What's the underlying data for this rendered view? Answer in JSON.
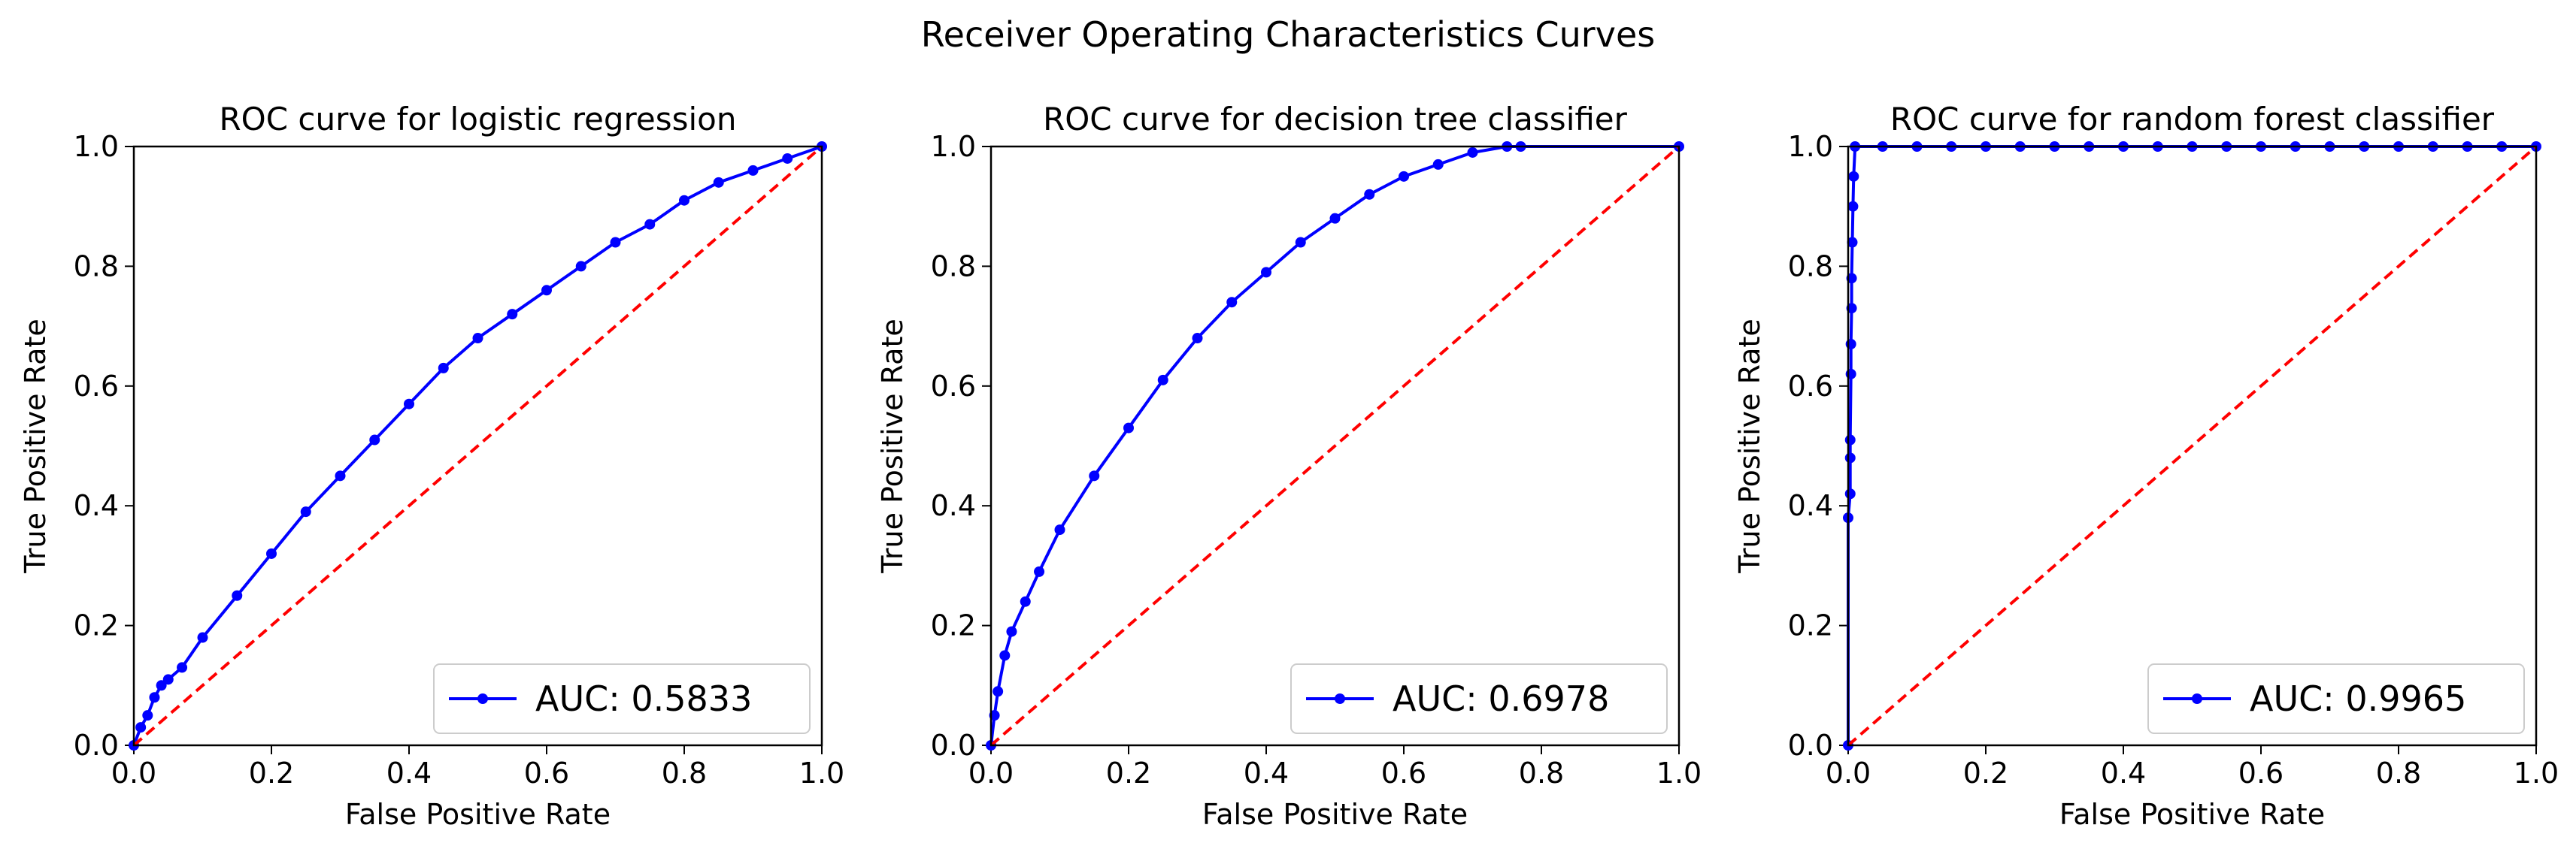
{
  "figure": {
    "suptitle": "Receiver Operating Characteristics Curves"
  },
  "colors": {
    "curve": "#0000ff",
    "diagonal": "#ff0000",
    "axes": "#000000",
    "legend_border": "#cccccc"
  },
  "chart_data": [
    {
      "type": "line",
      "title": "ROC curve for logistic regression",
      "xlabel": "False Positive Rate",
      "ylabel": "True Positive Rate",
      "xlim": [
        0.0,
        1.0
      ],
      "ylim": [
        0.0,
        1.0
      ],
      "xticks": [
        "0.0",
        "0.2",
        "0.4",
        "0.6",
        "0.8",
        "1.0"
      ],
      "yticks": [
        "0.0",
        "0.2",
        "0.4",
        "0.6",
        "0.8",
        "1.0"
      ],
      "grid": false,
      "legend_position": "lower-right",
      "series": [
        {
          "name": "AUC: 0.5833",
          "style": "line-with-dot-markers",
          "x": [
            0.0,
            0.01,
            0.02,
            0.03,
            0.04,
            0.05,
            0.07,
            0.1,
            0.15,
            0.2,
            0.25,
            0.3,
            0.35,
            0.4,
            0.45,
            0.5,
            0.55,
            0.6,
            0.65,
            0.7,
            0.75,
            0.8,
            0.85,
            0.9,
            0.95,
            1.0
          ],
          "y": [
            0.0,
            0.03,
            0.05,
            0.08,
            0.1,
            0.11,
            0.13,
            0.18,
            0.25,
            0.32,
            0.39,
            0.45,
            0.51,
            0.57,
            0.63,
            0.68,
            0.72,
            0.76,
            0.8,
            0.84,
            0.87,
            0.91,
            0.94,
            0.96,
            0.98,
            1.0
          ]
        },
        {
          "name": "",
          "style": "dashed",
          "x": [
            0.0,
            1.0
          ],
          "y": [
            0.0,
            1.0
          ]
        }
      ]
    },
    {
      "type": "line",
      "title": "ROC curve for decision tree classifier",
      "xlabel": "False Positive Rate",
      "ylabel": "True Positive Rate",
      "xlim": [
        0.0,
        1.0
      ],
      "ylim": [
        0.0,
        1.0
      ],
      "xticks": [
        "0.0",
        "0.2",
        "0.4",
        "0.6",
        "0.8",
        "1.0"
      ],
      "yticks": [
        "0.0",
        "0.2",
        "0.4",
        "0.6",
        "0.8",
        "1.0"
      ],
      "grid": false,
      "legend_position": "lower-right",
      "series": [
        {
          "name": "AUC: 0.6978",
          "style": "line-with-dot-markers",
          "x": [
            0.0,
            0.005,
            0.01,
            0.02,
            0.03,
            0.05,
            0.07,
            0.1,
            0.15,
            0.2,
            0.25,
            0.3,
            0.35,
            0.4,
            0.45,
            0.5,
            0.55,
            0.6,
            0.65,
            0.7,
            0.75,
            0.77,
            1.0
          ],
          "y": [
            0.0,
            0.05,
            0.09,
            0.15,
            0.19,
            0.24,
            0.29,
            0.36,
            0.45,
            0.53,
            0.61,
            0.68,
            0.74,
            0.79,
            0.84,
            0.88,
            0.92,
            0.95,
            0.97,
            0.99,
            1.0,
            1.0,
            1.0
          ]
        },
        {
          "name": "",
          "style": "dashed",
          "x": [
            0.0,
            1.0
          ],
          "y": [
            0.0,
            1.0
          ]
        }
      ]
    },
    {
      "type": "line",
      "title": "ROC curve for random forest classifier",
      "xlabel": "False Positive Rate",
      "ylabel": "True Positive Rate",
      "xlim": [
        0.0,
        1.0
      ],
      "ylim": [
        0.0,
        1.0
      ],
      "xticks": [
        "0.0",
        "0.2",
        "0.4",
        "0.6",
        "0.8",
        "1.0"
      ],
      "yticks": [
        "0.0",
        "0.2",
        "0.4",
        "0.6",
        "0.8",
        "1.0"
      ],
      "grid": false,
      "legend_position": "lower-right",
      "series": [
        {
          "name": "AUC: 0.9965",
          "style": "line-with-dot-markers",
          "x": [
            0.0,
            0.0,
            0.003,
            0.003,
            0.003,
            0.004,
            0.004,
            0.005,
            0.005,
            0.006,
            0.007,
            0.008,
            0.01,
            0.05,
            0.1,
            0.15,
            0.2,
            0.25,
            0.3,
            0.35,
            0.4,
            0.45,
            0.5,
            0.55,
            0.6,
            0.65,
            0.7,
            0.75,
            0.8,
            0.85,
            0.9,
            0.95,
            1.0
          ],
          "y": [
            0.0,
            0.38,
            0.42,
            0.48,
            0.51,
            0.62,
            0.67,
            0.73,
            0.78,
            0.84,
            0.9,
            0.95,
            1.0,
            1.0,
            1.0,
            1.0,
            1.0,
            1.0,
            1.0,
            1.0,
            1.0,
            1.0,
            1.0,
            1.0,
            1.0,
            1.0,
            1.0,
            1.0,
            1.0,
            1.0,
            1.0,
            1.0,
            1.0
          ]
        },
        {
          "name": "",
          "style": "dashed",
          "x": [
            0.0,
            1.0
          ],
          "y": [
            0.0,
            1.0
          ]
        }
      ]
    }
  ]
}
